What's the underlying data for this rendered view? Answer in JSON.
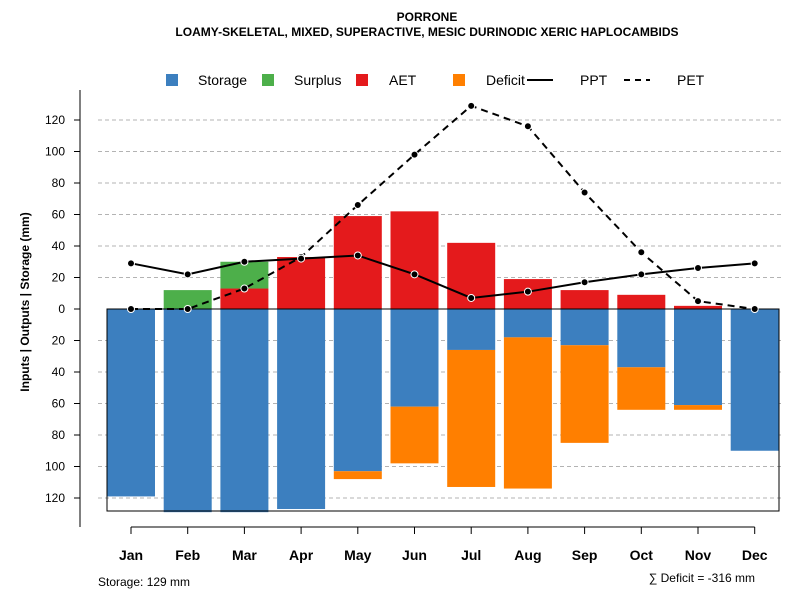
{
  "chart_data": {
    "type": "bar",
    "title": "PORRONE",
    "subtitle": "LOAMY-SKELETAL, MIXED, SUPERACTIVE, MESIC DURINODIC XERIC HAPLOCAMBIDS",
    "ylabel": "Inputs | Outputs | Storage    (mm)",
    "categories": [
      "Jan",
      "Feb",
      "Mar",
      "Apr",
      "May",
      "Jun",
      "Jul",
      "Aug",
      "Sep",
      "Oct",
      "Nov",
      "Dec"
    ],
    "yticks": [
      120,
      100,
      80,
      60,
      40,
      20,
      0,
      20,
      40,
      60,
      80,
      100,
      120
    ],
    "ylim": [
      -130,
      130
    ],
    "grid": true,
    "legend": {
      "placement": "top",
      "entries": [
        {
          "label": "Storage",
          "color": "#3C7FBF",
          "kind": "box"
        },
        {
          "label": "Surplus",
          "color": "#4DAF4A",
          "kind": "box"
        },
        {
          "label": "AET",
          "color": "#E41A1C",
          "kind": "box"
        },
        {
          "label": "Deficit",
          "color": "#FF7F00",
          "kind": "box"
        },
        {
          "label": "PPT",
          "color": "#000000",
          "kind": "solid-line"
        },
        {
          "label": "PET",
          "color": "#000000",
          "kind": "dashed-line"
        }
      ]
    },
    "series": [
      {
        "name": "AET",
        "color": "#E41A1C",
        "direction": "up",
        "values": [
          0,
          0,
          13,
          33,
          59,
          62,
          42,
          19,
          12,
          9,
          2,
          0
        ]
      },
      {
        "name": "Surplus",
        "color": "#4DAF4A",
        "direction": "up",
        "values": [
          0,
          12,
          17,
          0,
          0,
          0,
          0,
          0,
          0,
          0,
          0,
          0
        ]
      },
      {
        "name": "Storage",
        "color": "#3C7FBF",
        "direction": "down",
        "values": [
          119,
          129,
          129,
          127,
          103,
          62,
          26,
          18,
          23,
          37,
          61,
          90
        ]
      },
      {
        "name": "Deficit",
        "color": "#FF7F00",
        "direction": "down",
        "values": [
          0,
          0,
          0,
          0,
          5,
          36,
          87,
          96,
          62,
          27,
          3,
          0
        ]
      },
      {
        "name": "PPT",
        "color": "#000000",
        "style": "solid",
        "values": [
          29,
          22,
          30,
          32,
          34,
          22,
          7,
          11,
          17,
          22,
          26,
          29
        ]
      },
      {
        "name": "PET",
        "color": "#000000",
        "style": "dashed",
        "values": [
          0,
          0,
          13,
          33,
          66,
          98,
          129,
          116,
          74,
          36,
          5,
          0
        ]
      }
    ],
    "footer": {
      "storage": "Storage: 129 mm",
      "deficit": "∑ Deficit = -316 mm"
    }
  }
}
